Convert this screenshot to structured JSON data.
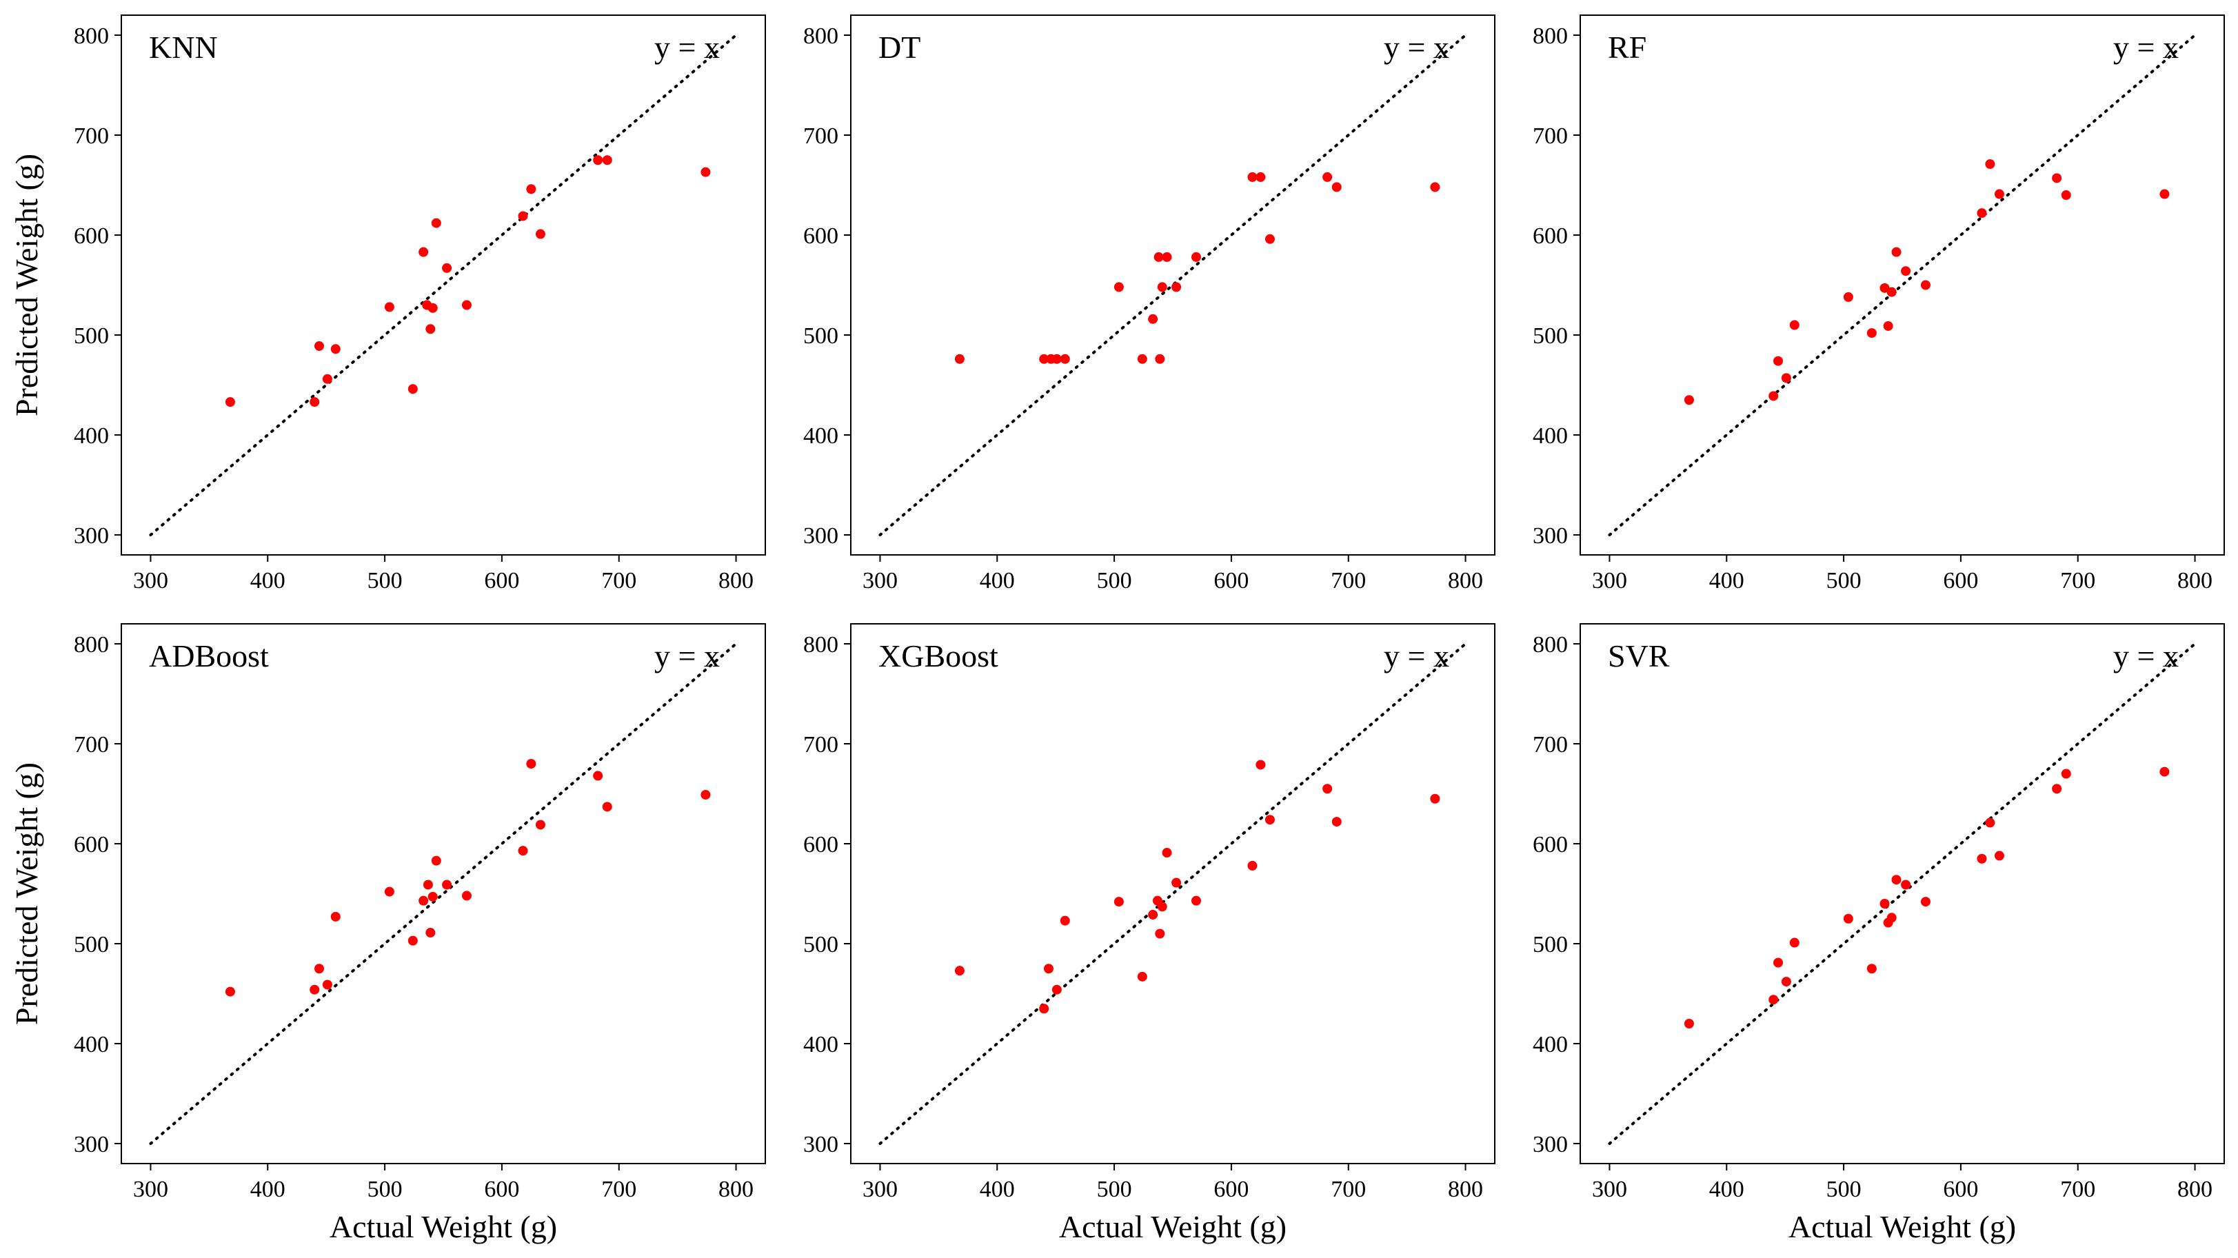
{
  "figure": {
    "xlabel": "Actual Weight (g)",
    "ylabel": "Predicted Weight (g)",
    "identity_label": "y = x",
    "point_color": "#ff0000",
    "line_color": "#000000"
  },
  "chart_data": [
    {
      "type": "scatter",
      "title": "KNN",
      "xlabel": "Actual Weight (g)",
      "ylabel": "Predicted Weight (g)",
      "xlim": [
        275,
        825
      ],
      "ylim": [
        280,
        820
      ],
      "xticks": [
        300,
        400,
        500,
        600,
        700,
        800
      ],
      "yticks": [
        300,
        400,
        500,
        600,
        700,
        800
      ],
      "reference_line": {
        "label": "y = x",
        "from": [
          300,
          300
        ],
        "to": [
          800,
          800
        ]
      },
      "points": [
        [
          368,
          433
        ],
        [
          440,
          433
        ],
        [
          444,
          489
        ],
        [
          451,
          456
        ],
        [
          458,
          486
        ],
        [
          504,
          528
        ],
        [
          524,
          446
        ],
        [
          533,
          583
        ],
        [
          536,
          530
        ],
        [
          539,
          506
        ],
        [
          541,
          527
        ],
        [
          544,
          612
        ],
        [
          553,
          567
        ],
        [
          570,
          530
        ],
        [
          618,
          619
        ],
        [
          625,
          646
        ],
        [
          633,
          601
        ],
        [
          682,
          675
        ],
        [
          690,
          675
        ],
        [
          774,
          663
        ]
      ]
    },
    {
      "type": "scatter",
      "title": "DT",
      "xlabel": "Actual Weight (g)",
      "ylabel": "Predicted Weight (g)",
      "xlim": [
        275,
        825
      ],
      "ylim": [
        280,
        820
      ],
      "xticks": [
        300,
        400,
        500,
        600,
        700,
        800
      ],
      "yticks": [
        300,
        400,
        500,
        600,
        700,
        800
      ],
      "reference_line": {
        "label": "y = x",
        "from": [
          300,
          300
        ],
        "to": [
          800,
          800
        ]
      },
      "points": [
        [
          368,
          476
        ],
        [
          440,
          476
        ],
        [
          446,
          476
        ],
        [
          451,
          476
        ],
        [
          458,
          476
        ],
        [
          504,
          548
        ],
        [
          524,
          476
        ],
        [
          533,
          516
        ],
        [
          538,
          578
        ],
        [
          539,
          476
        ],
        [
          541,
          548
        ],
        [
          545,
          578
        ],
        [
          553,
          548
        ],
        [
          570,
          578
        ],
        [
          618,
          658
        ],
        [
          625,
          658
        ],
        [
          633,
          596
        ],
        [
          682,
          658
        ],
        [
          690,
          648
        ],
        [
          774,
          648
        ]
      ]
    },
    {
      "type": "scatter",
      "title": "RF",
      "xlabel": "Actual Weight (g)",
      "ylabel": "Predicted Weight (g)",
      "xlim": [
        275,
        825
      ],
      "ylim": [
        280,
        820
      ],
      "xticks": [
        300,
        400,
        500,
        600,
        700,
        800
      ],
      "yticks": [
        300,
        400,
        500,
        600,
        700,
        800
      ],
      "reference_line": {
        "label": "y = x",
        "from": [
          300,
          300
        ],
        "to": [
          800,
          800
        ]
      },
      "points": [
        [
          368,
          435
        ],
        [
          440,
          439
        ],
        [
          444,
          474
        ],
        [
          451,
          457
        ],
        [
          458,
          510
        ],
        [
          504,
          538
        ],
        [
          524,
          502
        ],
        [
          535,
          547
        ],
        [
          538,
          509
        ],
        [
          541,
          543
        ],
        [
          545,
          583
        ],
        [
          553,
          564
        ],
        [
          570,
          550
        ],
        [
          618,
          622
        ],
        [
          625,
          671
        ],
        [
          633,
          641
        ],
        [
          682,
          657
        ],
        [
          690,
          640
        ],
        [
          774,
          641
        ]
      ]
    },
    {
      "type": "scatter",
      "title": "ADBoost",
      "xlabel": "Actual Weight (g)",
      "ylabel": "Predicted Weight (g)",
      "xlim": [
        275,
        825
      ],
      "ylim": [
        280,
        820
      ],
      "xticks": [
        300,
        400,
        500,
        600,
        700,
        800
      ],
      "yticks": [
        300,
        400,
        500,
        600,
        700,
        800
      ],
      "reference_line": {
        "label": "y = x",
        "from": [
          300,
          300
        ],
        "to": [
          800,
          800
        ]
      },
      "points": [
        [
          368,
          452
        ],
        [
          440,
          454
        ],
        [
          444,
          475
        ],
        [
          451,
          459
        ],
        [
          458,
          527
        ],
        [
          504,
          552
        ],
        [
          524,
          503
        ],
        [
          533,
          543
        ],
        [
          537,
          559
        ],
        [
          539,
          511
        ],
        [
          541,
          547
        ],
        [
          544,
          583
        ],
        [
          553,
          559
        ],
        [
          570,
          548
        ],
        [
          618,
          593
        ],
        [
          625,
          680
        ],
        [
          633,
          619
        ],
        [
          682,
          668
        ],
        [
          690,
          637
        ],
        [
          774,
          649
        ]
      ]
    },
    {
      "type": "scatter",
      "title": "XGBoost",
      "xlabel": "Actual Weight (g)",
      "ylabel": "Predicted Weight (g)",
      "xlim": [
        275,
        825
      ],
      "ylim": [
        280,
        820
      ],
      "xticks": [
        300,
        400,
        500,
        600,
        700,
        800
      ],
      "yticks": [
        300,
        400,
        500,
        600,
        700,
        800
      ],
      "reference_line": {
        "label": "y = x",
        "from": [
          300,
          300
        ],
        "to": [
          800,
          800
        ]
      },
      "points": [
        [
          368,
          473
        ],
        [
          440,
          435
        ],
        [
          444,
          475
        ],
        [
          451,
          454
        ],
        [
          458,
          523
        ],
        [
          504,
          542
        ],
        [
          524,
          467
        ],
        [
          533,
          529
        ],
        [
          537,
          543
        ],
        [
          539,
          510
        ],
        [
          541,
          537
        ],
        [
          545,
          591
        ],
        [
          553,
          561
        ],
        [
          570,
          543
        ],
        [
          618,
          578
        ],
        [
          625,
          679
        ],
        [
          633,
          624
        ],
        [
          682,
          655
        ],
        [
          690,
          622
        ],
        [
          774,
          645
        ]
      ]
    },
    {
      "type": "scatter",
      "title": "SVR",
      "xlabel": "Actual Weight (g)",
      "ylabel": "Predicted Weight (g)",
      "xlim": [
        275,
        825
      ],
      "ylim": [
        280,
        820
      ],
      "xticks": [
        300,
        400,
        500,
        600,
        700,
        800
      ],
      "yticks": [
        300,
        400,
        500,
        600,
        700,
        800
      ],
      "reference_line": {
        "label": "y = x",
        "from": [
          300,
          300
        ],
        "to": [
          800,
          800
        ]
      },
      "points": [
        [
          368,
          420
        ],
        [
          440,
          444
        ],
        [
          444,
          481
        ],
        [
          451,
          462
        ],
        [
          458,
          501
        ],
        [
          504,
          525
        ],
        [
          524,
          475
        ],
        [
          535,
          540
        ],
        [
          538,
          521
        ],
        [
          541,
          526
        ],
        [
          545,
          564
        ],
        [
          553,
          559
        ],
        [
          570,
          542
        ],
        [
          618,
          585
        ],
        [
          625,
          621
        ],
        [
          633,
          588
        ],
        [
          682,
          655
        ],
        [
          690,
          670
        ],
        [
          774,
          672
        ]
      ]
    }
  ]
}
